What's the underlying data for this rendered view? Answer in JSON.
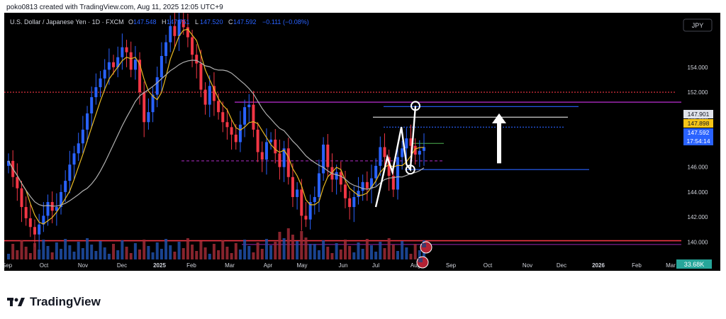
{
  "caption": "poko0813 created with TradingView.com, Aug 11, 2025 12:05 UTC+9",
  "brand": {
    "name": "TradingView"
  },
  "header": {
    "symbol": "U.S. Dollar / Japanese Yen · 1D · FXCM",
    "ohlc": [
      {
        "k": "O",
        "v": "147.548"
      },
      {
        "k": "H",
        "v": "147.751"
      },
      {
        "k": "L",
        "v": "147.520"
      },
      {
        "k": "C",
        "v": "147.592"
      }
    ],
    "change": "−0.111 (−0.08%)",
    "currency_button": "JPY"
  },
  "colors": {
    "background": "#000000",
    "up": "#2962ff",
    "down": "#f23645",
    "ma_short": "#e8b923",
    "ma_long": "#b0b0b0",
    "support_red": "#f23645",
    "purple": "#9c27b0",
    "blue_line": "#2962ff",
    "green": "#4caf50",
    "white": "#ffffff"
  },
  "chart_data": {
    "type": "candlestick",
    "ylim": [
      138.6,
      157.0
    ],
    "yticks": [
      "154.000",
      "152.000",
      "150.000",
      "148.000",
      "146.000",
      "144.000",
      "142.000",
      "140.000"
    ],
    "ytick_values": [
      154,
      152,
      150,
      148,
      146,
      144,
      142,
      140
    ],
    "xticks": [
      "Sep",
      "Oct",
      "Nov",
      "Dec",
      "2025",
      "Feb",
      "Mar",
      "Apr",
      "May",
      "Jun",
      "Jul",
      "Aug",
      "Sep",
      "Oct",
      "Nov",
      "Dec",
      "2026",
      "Feb",
      "Mar"
    ],
    "xtick_bold": [
      "2025",
      "2026"
    ],
    "price_labels": [
      {
        "text": "147.901",
        "value": 147.901,
        "bg": "#e0e3eb",
        "fg": "#131722"
      },
      {
        "text": "147.898",
        "value": 147.898,
        "bg": "#f5c518",
        "fg": "#131722"
      },
      {
        "text": "147.592",
        "value": 147.592,
        "bg": "#2962ff",
        "fg": "#ffffff"
      },
      {
        "text": "17:54:14",
        "value": 147.2,
        "bg": "#2962ff",
        "fg": "#ffffff"
      }
    ],
    "volume_label": "33.68K",
    "series": [
      {
        "name": "Price",
        "kind": "candles",
        "closes": [
          146.5,
          145.2,
          144.3,
          142.8,
          141.9,
          141.2,
          140.6,
          141.4,
          142.1,
          143.2,
          142.5,
          142.8,
          144.0,
          144.9,
          146.2,
          147.1,
          147.9,
          149.0,
          150.3,
          151.6,
          152.4,
          153.1,
          153.8,
          154.4,
          154.0,
          154.8,
          155.6,
          155.2,
          153.8,
          154.6,
          152.0,
          149.6,
          150.4,
          151.8,
          153.2,
          154.9,
          156.0,
          157.3,
          156.5,
          157.8,
          157.2,
          156.4,
          155.0,
          154.3,
          152.2,
          151.0,
          152.5,
          151.3,
          150.4,
          149.6,
          149.2,
          148.6,
          148.0,
          149.4,
          150.8,
          151.0,
          149.0,
          147.2,
          146.6,
          148.0,
          148.2,
          147.1,
          146.0,
          147.5,
          145.2,
          143.6,
          144.2,
          142.1,
          141.8,
          143.2,
          143.6,
          145.5,
          147.8,
          146.0,
          145.0,
          145.6,
          144.6,
          143.5,
          142.8,
          143.6,
          144.1,
          144.8,
          144.3,
          145.1,
          146.1,
          147.6,
          146.8,
          145.3,
          144.2,
          146.8,
          147.5,
          148.3,
          147.7,
          147.0,
          147.3,
          147.6
        ]
      },
      {
        "name": "MA short",
        "kind": "line"
      },
      {
        "name": "MA long",
        "kind": "line"
      }
    ],
    "levels": [
      {
        "value": 152.0,
        "style": "dotted",
        "color": "support_red"
      },
      {
        "value": 151.2,
        "style": "solid",
        "color": "purple"
      },
      {
        "value": 150.85,
        "style": "solid",
        "color": "blue_line"
      },
      {
        "value": 150.0,
        "style": "solid",
        "color": "white"
      },
      {
        "value": 149.2,
        "style": "dotted",
        "color": "blue_line"
      },
      {
        "value": 147.9,
        "style": "solid",
        "color": "green"
      },
      {
        "value": 146.5,
        "style": "dashed",
        "color": "purple"
      },
      {
        "value": 145.8,
        "style": "solid",
        "color": "blue_line"
      },
      {
        "value": 140.1,
        "style": "solid",
        "color": "support_red"
      },
      {
        "value": 139.8,
        "style": "solid",
        "color": "purple"
      }
    ],
    "projection": [
      {
        "date": "2025-07-01",
        "value": 142.8
      },
      {
        "date": "2025-07-10",
        "value": 146.8
      },
      {
        "date": "2025-07-14",
        "value": 145.6
      },
      {
        "date": "2025-07-21",
        "value": 149.2
      },
      {
        "date": "2025-07-25",
        "value": 146.2
      },
      {
        "date": "2025-07-28",
        "value": 145.8
      },
      {
        "date": "2025-08-01",
        "value": 150.9
      }
    ],
    "arrow_up": {
      "from": 146.3,
      "to": 150.3
    },
    "grid": false,
    "legend": "none"
  }
}
